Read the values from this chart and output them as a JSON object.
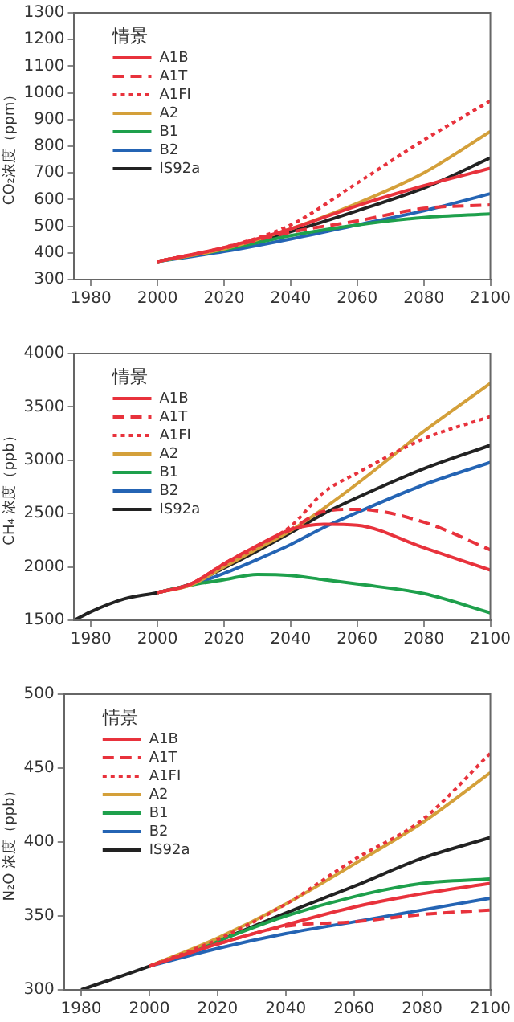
{
  "chart_data": [
    {
      "type": "line",
      "ylabel": "CO₂浓度（ppm）",
      "legend_title": "情景",
      "legend": "top left",
      "grid": false,
      "xlim": [
        1975,
        2100
      ],
      "xticks": [
        1980,
        2000,
        2020,
        2040,
        2060,
        2080,
        2100
      ],
      "ylim": [
        300,
        1300
      ],
      "yticks": [
        300,
        400,
        500,
        600,
        700,
        800,
        900,
        1000,
        1100,
        1200,
        1300
      ],
      "x": [
        2000,
        2020,
        2040,
        2060,
        2080,
        2100
      ],
      "series": [
        {
          "name": "A1B",
          "color": "#e8323c",
          "line_style": "solid",
          "values": [
            368,
            420,
            490,
            577,
            652,
            717
          ]
        },
        {
          "name": "A1T",
          "color": "#e8323c",
          "line_style": "dashed",
          "values": [
            368,
            418,
            478,
            520,
            567,
            580
          ]
        },
        {
          "name": "A1FI",
          "color": "#e8323c",
          "line_style": "dotted",
          "values": [
            368,
            420,
            505,
            662,
            823,
            970
          ]
        },
        {
          "name": "A2",
          "color": "#d4a03a",
          "line_style": "solid",
          "values": [
            368,
            415,
            490,
            586,
            700,
            855
          ]
        },
        {
          "name": "B1",
          "color": "#1ea04c",
          "line_style": "solid",
          "values": [
            368,
            412,
            465,
            505,
            533,
            546
          ]
        },
        {
          "name": "B2",
          "color": "#2464b4",
          "line_style": "solid",
          "values": [
            368,
            405,
            452,
            505,
            558,
            622
          ]
        },
        {
          "name": "IS92a",
          "color": "#222222",
          "line_style": "solid",
          "values": [
            368,
            415,
            480,
            558,
            643,
            756
          ]
        }
      ]
    },
    {
      "type": "line",
      "ylabel": "CH₄ 浓度（ppb）",
      "legend_title": "情景",
      "legend": "top left",
      "grid": false,
      "xlim": [
        1975,
        2100
      ],
      "xticks": [
        1980,
        2000,
        2020,
        2040,
        2060,
        2080,
        2100
      ],
      "ylim": [
        1500,
        4000
      ],
      "yticks": [
        1500,
        2000,
        2500,
        3000,
        3500,
        4000
      ],
      "x": [
        1975,
        1980,
        1990,
        2000,
        2010,
        2020,
        2030,
        2040,
        2050,
        2060,
        2080,
        2100
      ],
      "series": [
        {
          "name": "A1B",
          "color": "#e8323c",
          "line_style": "solid",
          "values": [
            null,
            null,
            null,
            1760,
            1840,
            2030,
            2200,
            2350,
            2400,
            2390,
            2180,
            1970
          ]
        },
        {
          "name": "A1T",
          "color": "#e8323c",
          "line_style": "dashed",
          "values": [
            null,
            null,
            null,
            1760,
            1840,
            2030,
            2200,
            2350,
            2520,
            2540,
            2420,
            2160
          ]
        },
        {
          "name": "A1FI",
          "color": "#e8323c",
          "line_style": "dotted",
          "values": [
            null,
            null,
            null,
            1760,
            1840,
            2020,
            2190,
            2380,
            2700,
            2880,
            3200,
            3410
          ]
        },
        {
          "name": "A2",
          "color": "#d4a03a",
          "line_style": "solid",
          "values": [
            null,
            null,
            null,
            1760,
            1830,
            2000,
            2170,
            2340,
            2550,
            2780,
            3270,
            3720
          ]
        },
        {
          "name": "B1",
          "color": "#1ea04c",
          "line_style": "solid",
          "values": [
            null,
            null,
            null,
            1760,
            1830,
            1880,
            1930,
            1920,
            1880,
            1840,
            1750,
            1570
          ]
        },
        {
          "name": "B2",
          "color": "#2464b4",
          "line_style": "solid",
          "values": [
            null,
            null,
            null,
            1760,
            1830,
            1940,
            2070,
            2210,
            2370,
            2510,
            2770,
            2980
          ]
        },
        {
          "name": "IS92a",
          "color": "#222222",
          "line_style": "solid",
          "values": [
            1500,
            1580,
            1700,
            1760,
            1840,
            1990,
            2150,
            2320,
            2500,
            2650,
            2920,
            3140
          ]
        }
      ]
    },
    {
      "type": "line",
      "ylabel": "N₂O 浓度（ppb）",
      "legend_title": "情景",
      "legend": "top left",
      "grid": false,
      "xlim": [
        1975,
        2100
      ],
      "xticks": [
        1980,
        2000,
        2020,
        2040,
        2060,
        2080,
        2100
      ],
      "ylim": [
        300,
        500
      ],
      "yticks": [
        300,
        350,
        400,
        450,
        500
      ],
      "x": [
        1980,
        2000,
        2020,
        2040,
        2060,
        2080,
        2100
      ],
      "series": [
        {
          "name": "A1B",
          "color": "#e8323c",
          "line_style": "solid",
          "values": [
            null,
            316,
            331,
            344,
            356,
            365,
            372
          ]
        },
        {
          "name": "A1T",
          "color": "#e8323c",
          "line_style": "dashed",
          "values": [
            null,
            316,
            331,
            343,
            346,
            351,
            354
          ]
        },
        {
          "name": "A1FI",
          "color": "#e8323c",
          "line_style": "dotted",
          "values": [
            null,
            316,
            334,
            358,
            388,
            415,
            460
          ]
        },
        {
          "name": "A2",
          "color": "#d4a03a",
          "line_style": "solid",
          "values": [
            null,
            316,
            335,
            358,
            385,
            413,
            447
          ]
        },
        {
          "name": "B1",
          "color": "#1ea04c",
          "line_style": "solid",
          "values": [
            null,
            316,
            333,
            350,
            363,
            372,
            375
          ]
        },
        {
          "name": "B2",
          "color": "#2464b4",
          "line_style": "solid",
          "values": [
            null,
            316,
            328,
            338,
            346,
            354,
            362
          ]
        },
        {
          "name": "IS92a",
          "color": "#222222",
          "line_style": "solid",
          "values": [
            300,
            316,
            333,
            352,
            370,
            389,
            403
          ]
        }
      ]
    }
  ]
}
